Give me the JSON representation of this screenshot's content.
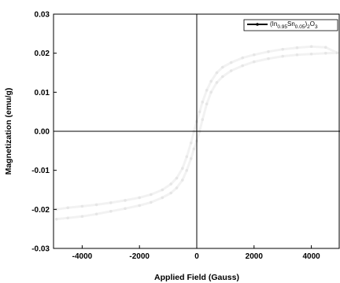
{
  "chart_data": {
    "type": "line",
    "xlabel": "Applied Field (Gauss)",
    "ylabel": "Magnetization (emu/g)",
    "xlim": [
      -5000,
      5000
    ],
    "ylim": [
      -0.03,
      0.03
    ],
    "xticks": [
      -4000,
      -2000,
      0,
      2000,
      4000
    ],
    "xtick_labels": [
      "-4000",
      "-2000",
      "0",
      "2000",
      "4000"
    ],
    "yticks": [
      -0.03,
      -0.02,
      -0.01,
      0.0,
      0.01,
      0.02,
      0.03
    ],
    "ytick_labels": [
      "-0.03",
      "-0.02",
      "-0.01",
      "0.00",
      "0.01",
      "0.02",
      "0.03"
    ],
    "grid": false,
    "zero_lines": true,
    "legend_position": "top-right",
    "series": [
      {
        "name": "(In0.95Sn0.05)2O3",
        "color": "#f2f2f2",
        "marker": "circle",
        "points": [
          [
            -4900,
            -0.0225
          ],
          [
            -4500,
            -0.0222
          ],
          [
            -4000,
            -0.0218
          ],
          [
            -3500,
            -0.0212
          ],
          [
            -3000,
            -0.0205
          ],
          [
            -2500,
            -0.0198
          ],
          [
            -2000,
            -0.019
          ],
          [
            -1600,
            -0.0182
          ],
          [
            -1200,
            -0.017
          ],
          [
            -900,
            -0.0158
          ],
          [
            -700,
            -0.0145
          ],
          [
            -500,
            -0.0125
          ],
          [
            -350,
            -0.01
          ],
          [
            -200,
            -0.007
          ],
          [
            -100,
            -0.0045
          ],
          [
            0,
            -0.0025
          ],
          [
            100,
            0.0
          ],
          [
            200,
            0.003
          ],
          [
            350,
            0.007
          ],
          [
            500,
            0.01
          ],
          [
            700,
            0.0125
          ],
          [
            900,
            0.014
          ],
          [
            1200,
            0.0155
          ],
          [
            1600,
            0.0168
          ],
          [
            2000,
            0.0178
          ],
          [
            2500,
            0.0186
          ],
          [
            3000,
            0.0192
          ],
          [
            3500,
            0.0196
          ],
          [
            4000,
            0.0198
          ],
          [
            4500,
            0.02
          ],
          [
            4900,
            0.0201
          ],
          [
            4500,
            0.0215
          ],
          [
            4000,
            0.0217
          ],
          [
            3500,
            0.0214
          ],
          [
            3000,
            0.021
          ],
          [
            2500,
            0.0204
          ],
          [
            2000,
            0.0196
          ],
          [
            1600,
            0.0188
          ],
          [
            1200,
            0.0176
          ],
          [
            900,
            0.0164
          ],
          [
            700,
            0.015
          ],
          [
            500,
            0.0128
          ],
          [
            350,
            0.0105
          ],
          [
            200,
            0.0075
          ],
          [
            100,
            0.005
          ],
          [
            0,
            0.0025
          ],
          [
            -100,
            0.0
          ],
          [
            -200,
            -0.003
          ],
          [
            -350,
            -0.0065
          ],
          [
            -500,
            -0.0095
          ],
          [
            -700,
            -0.012
          ],
          [
            -900,
            -0.0135
          ],
          [
            -1200,
            -0.015
          ],
          [
            -1600,
            -0.0162
          ],
          [
            -2000,
            -0.017
          ],
          [
            -2500,
            -0.0177
          ],
          [
            -3000,
            -0.0183
          ],
          [
            -3500,
            -0.0188
          ],
          [
            -4000,
            -0.0192
          ],
          [
            -4500,
            -0.0196
          ],
          [
            -4900,
            -0.02
          ]
        ]
      }
    ]
  }
}
